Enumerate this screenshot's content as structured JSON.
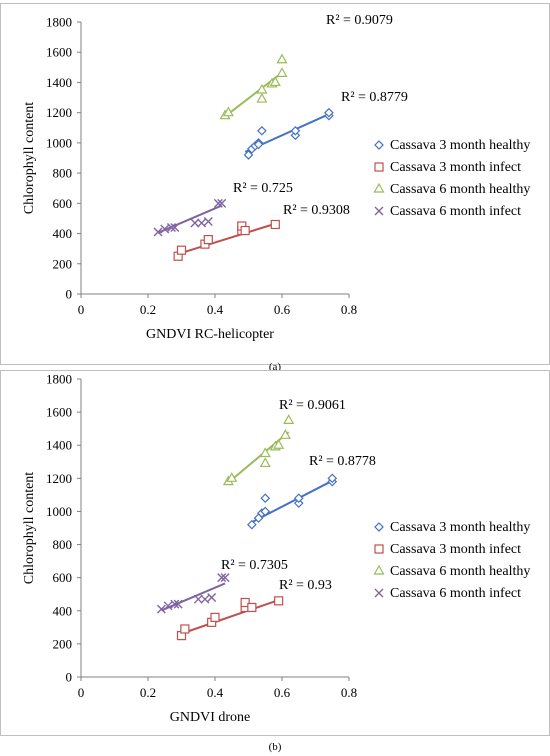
{
  "chart_data": [
    {
      "type": "scatter",
      "xlabel": "GNDVI RC-helicopter",
      "ylabel": "Chlorophyll content",
      "xlim": [
        0,
        0.8
      ],
      "ylim": [
        0,
        1800
      ],
      "xticks": [
        "0",
        "0.2",
        "0.4",
        "0.6",
        "0.8"
      ],
      "yticks": [
        "0",
        "200",
        "400",
        "600",
        "800",
        "1000",
        "1200",
        "1400",
        "1600",
        "1800"
      ],
      "grid": false,
      "legend_position": "right",
      "series": [
        {
          "name": "Cassava 3 month healthy",
          "marker": "diamond",
          "color": "#4472C4",
          "x": [
            0.5,
            0.51,
            0.52,
            0.53,
            0.54,
            0.53,
            0.64,
            0.64,
            0.74,
            0.74
          ],
          "y": [
            920,
            960,
            980,
            1000,
            1080,
            990,
            1050,
            1080,
            1180,
            1200
          ],
          "trend": {
            "x": [
              0.49,
              0.74
            ],
            "y": [
              940,
              1190
            ]
          },
          "r2": "R² = 0.8779"
        },
        {
          "name": "Cassava 3 month infect",
          "marker": "square",
          "color": "#C0504D",
          "x": [
            0.29,
            0.3,
            0.37,
            0.38,
            0.48,
            0.48,
            0.49,
            0.58
          ],
          "y": [
            250,
            290,
            330,
            360,
            420,
            450,
            420,
            460
          ],
          "trend": {
            "x": [
              0.29,
              0.58
            ],
            "y": [
              265,
              465
            ]
          },
          "r2": "R² = 0.9308"
        },
        {
          "name": "Cassava 6 month healthy",
          "marker": "triangle",
          "color": "#9BBB59",
          "x": [
            0.43,
            0.44,
            0.54,
            0.54,
            0.57,
            0.58,
            0.6,
            0.6
          ],
          "y": [
            1180,
            1200,
            1290,
            1350,
            1390,
            1400,
            1460,
            1550
          ],
          "trend": {
            "x": [
              0.43,
              0.6
            ],
            "y": [
              1175,
              1465
            ]
          },
          "r2": "R² = 0.9079"
        },
        {
          "name": "Cassava 6 month infect",
          "marker": "x",
          "color": "#8064A2",
          "x": [
            0.23,
            0.25,
            0.27,
            0.28,
            0.34,
            0.36,
            0.38,
            0.41,
            0.42
          ],
          "y": [
            410,
            430,
            440,
            440,
            470,
            470,
            480,
            600,
            600
          ],
          "trend": {
            "x": [
              0.23,
              0.42
            ],
            "y": [
              405,
              585
            ]
          },
          "r2": "R² = 0.725"
        }
      ]
    },
    {
      "type": "scatter",
      "xlabel": "GNDVI drone",
      "ylabel": "Chlorophyll content",
      "xlim": [
        0,
        0.8
      ],
      "ylim": [
        0,
        1800
      ],
      "xticks": [
        "0",
        "0.2",
        "0.4",
        "0.6",
        "0.8"
      ],
      "yticks": [
        "0",
        "200",
        "400",
        "600",
        "800",
        "1000",
        "1200",
        "1400",
        "1600",
        "1800"
      ],
      "grid": false,
      "legend_position": "right",
      "series": [
        {
          "name": "Cassava 3 month healthy",
          "marker": "diamond",
          "color": "#4472C4",
          "x": [
            0.51,
            0.53,
            0.54,
            0.55,
            0.55,
            0.65,
            0.65,
            0.75,
            0.75
          ],
          "y": [
            920,
            960,
            990,
            1000,
            1080,
            1050,
            1080,
            1180,
            1200
          ],
          "trend": {
            "x": [
              0.51,
              0.75
            ],
            "y": [
              935,
              1185
            ]
          },
          "r2": "R² = 0.8778"
        },
        {
          "name": "Cassava 3 month infect",
          "marker": "square",
          "color": "#C0504D",
          "x": [
            0.3,
            0.31,
            0.39,
            0.4,
            0.49,
            0.49,
            0.51,
            0.59
          ],
          "y": [
            250,
            290,
            330,
            360,
            420,
            450,
            420,
            460
          ],
          "trend": {
            "x": [
              0.3,
              0.59
            ],
            "y": [
              262,
              465
            ]
          },
          "r2": "R² = 0.93"
        },
        {
          "name": "Cassava 6 month healthy",
          "marker": "triangle",
          "color": "#9BBB59",
          "x": [
            0.44,
            0.45,
            0.55,
            0.55,
            0.58,
            0.59,
            0.61,
            0.62
          ],
          "y": [
            1180,
            1200,
            1290,
            1350,
            1390,
            1400,
            1460,
            1550
          ],
          "trend": {
            "x": [
              0.44,
              0.62
            ],
            "y": [
              1175,
              1480
            ]
          },
          "r2": "R² = 0.9061"
        },
        {
          "name": "Cassava 6 month infect",
          "marker": "x",
          "color": "#8064A2",
          "x": [
            0.24,
            0.26,
            0.28,
            0.29,
            0.35,
            0.37,
            0.39,
            0.42,
            0.43
          ],
          "y": [
            410,
            430,
            440,
            440,
            470,
            470,
            480,
            600,
            600
          ],
          "trend": {
            "x": [
              0.24,
              0.43
            ],
            "y": [
              402,
              565
            ]
          },
          "r2": "R² = 0.7305"
        }
      ]
    }
  ],
  "captions": [
    "(a)",
    "(b)"
  ]
}
